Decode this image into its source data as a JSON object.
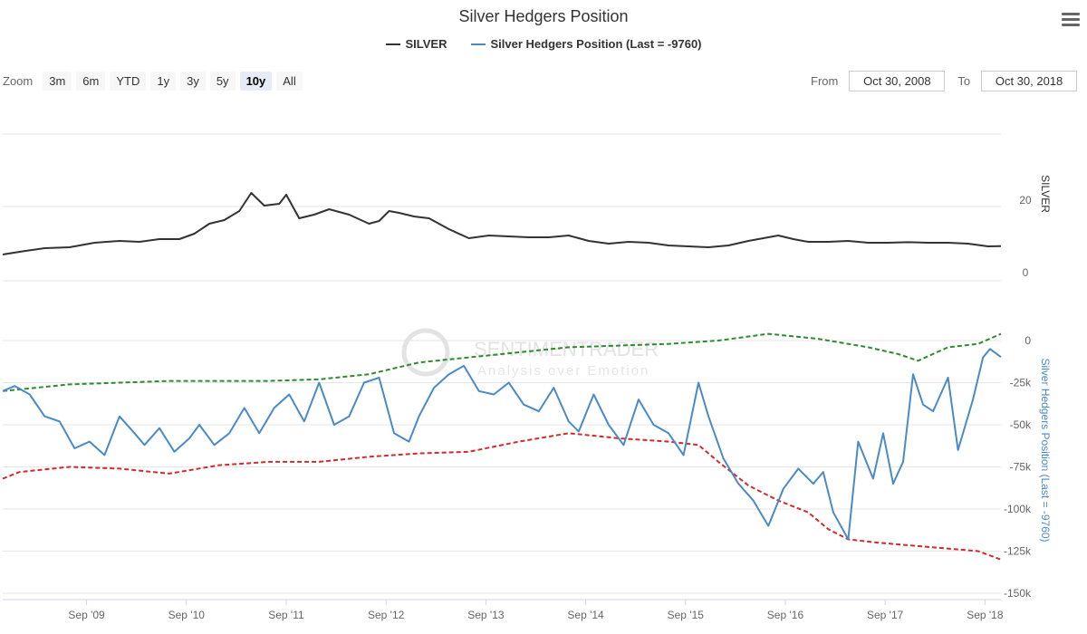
{
  "title": "Silver Hedgers Position",
  "menu_icon": "hamburger-menu-icon",
  "legend": [
    {
      "label": "SILVER",
      "color": "#333333"
    },
    {
      "label": "Silver Hedgers Position (Last = -9760)",
      "color": "#4a8ac9"
    }
  ],
  "zoom": {
    "label": "Zoom",
    "buttons": [
      "3m",
      "6m",
      "YTD",
      "1y",
      "3y",
      "5y",
      "10y",
      "All"
    ],
    "active": "10y"
  },
  "range": {
    "from_label": "From",
    "from_value": "Oct 30, 2008",
    "to_label": "To",
    "to_value": "Oct 30, 2018"
  },
  "watermark": {
    "line1": "SENTIMENTRADER",
    "line2": "Analysis over Emotion"
  },
  "colors": {
    "silver": "#333333",
    "hedgers": "#4a8ac9",
    "upper_band": "#2e8b2e",
    "lower_band": "#d42a2a",
    "grid": "#e6e6e6"
  },
  "chart_data": [
    {
      "type": "line",
      "ylabel": "SILVER",
      "y_ticks": [
        0,
        20
      ],
      "ylim": [
        -7,
        36
      ],
      "series": [
        {
          "name": "SILVER",
          "x": [
            2008.83,
            2009.0,
            2009.25,
            2009.5,
            2009.75,
            2010.0,
            2010.2,
            2010.4,
            2010.6,
            2010.75,
            2010.9,
            2011.05,
            2011.2,
            2011.32,
            2011.45,
            2011.6,
            2011.67,
            2011.8,
            2011.95,
            2012.1,
            2012.3,
            2012.5,
            2012.6,
            2012.7,
            2012.8,
            2012.95,
            2013.1,
            2013.3,
            2013.5,
            2013.7,
            2013.9,
            2014.1,
            2014.3,
            2014.5,
            2014.7,
            2014.9,
            2015.1,
            2015.3,
            2015.5,
            2015.7,
            2015.9,
            2016.1,
            2016.3,
            2016.5,
            2016.6,
            2016.75,
            2016.9,
            2017.1,
            2017.3,
            2017.5,
            2017.7,
            2017.9,
            2018.1,
            2018.3,
            2018.5,
            2018.7,
            2018.83
          ],
          "values": [
            10.0,
            11.5,
            13.5,
            14.0,
            16.5,
            17.5,
            17.0,
            18.5,
            18.5,
            21.5,
            27.0,
            29.0,
            34.0,
            44.0,
            37.0,
            38.0,
            43.0,
            30.0,
            32.0,
            35.0,
            32.0,
            27.0,
            28.5,
            34.0,
            33.0,
            31.0,
            30.0,
            24.0,
            19.0,
            20.5,
            20.0,
            19.5,
            19.5,
            20.5,
            17.5,
            16.0,
            17.0,
            16.5,
            15.0,
            14.5,
            14.0,
            15.0,
            17.5,
            19.5,
            20.5,
            18.5,
            17.0,
            17.0,
            17.5,
            16.5,
            16.5,
            16.8,
            16.5,
            16.5,
            16.0,
            14.5,
            14.6
          ]
        }
      ]
    },
    {
      "type": "line",
      "ylabel": "Silver Hedgers Position (Last = -9760)",
      "y_ticks": [
        0,
        -25000,
        -50000,
        -75000,
        -100000,
        -125000,
        -150000
      ],
      "y_tick_labels": [
        "0",
        "-25k",
        "-50k",
        "-75k",
        "-100k",
        "-125k",
        "-150k"
      ],
      "ylim": [
        -152000,
        20000
      ],
      "x_ticks": [
        2009.67,
        2010.67,
        2011.67,
        2012.67,
        2013.67,
        2014.67,
        2015.67,
        2016.67,
        2017.67,
        2018.67
      ],
      "x_tick_labels": [
        "Sep '09",
        "Sep '10",
        "Sep '11",
        "Sep '12",
        "Sep '13",
        "Sep '14",
        "Sep '15",
        "Sep '16",
        "Sep '17",
        "Sep '18"
      ],
      "series": [
        {
          "name": "Silver Hedgers Position (Last = -9760)",
          "x": [
            2008.83,
            2008.95,
            2009.1,
            2009.25,
            2009.4,
            2009.55,
            2009.7,
            2009.85,
            2010.0,
            2010.15,
            2010.25,
            2010.4,
            2010.55,
            2010.7,
            2010.8,
            2010.95,
            2011.1,
            2011.25,
            2011.4,
            2011.55,
            2011.7,
            2011.85,
            2012.0,
            2012.15,
            2012.3,
            2012.45,
            2012.6,
            2012.75,
            2012.9,
            2013.0,
            2013.15,
            2013.3,
            2013.45,
            2013.6,
            2013.75,
            2013.9,
            2014.05,
            2014.2,
            2014.35,
            2014.5,
            2014.6,
            2014.75,
            2014.9,
            2015.05,
            2015.2,
            2015.35,
            2015.5,
            2015.65,
            2015.8,
            2015.9,
            2016.05,
            2016.2,
            2016.35,
            2016.5,
            2016.65,
            2016.8,
            2016.95,
            2017.05,
            2017.15,
            2017.3,
            2017.4,
            2017.55,
            2017.65,
            2017.75,
            2017.85,
            2017.95,
            2018.05,
            2018.15,
            2018.3,
            2018.4,
            2018.55,
            2018.65,
            2018.72,
            2018.83
          ],
          "values": [
            -30000,
            -27000,
            -32000,
            -45000,
            -48000,
            -64000,
            -60000,
            -68000,
            -45000,
            -55000,
            -62000,
            -52000,
            -66000,
            -58000,
            -50000,
            -62000,
            -55000,
            -40000,
            -55000,
            -40000,
            -32000,
            -48000,
            -25000,
            -50000,
            -45000,
            -25000,
            -22000,
            -55000,
            -60000,
            -45000,
            -28000,
            -20000,
            -15000,
            -30000,
            -32000,
            -25000,
            -38000,
            -42000,
            -28000,
            -48000,
            -54000,
            -32000,
            -50000,
            -62000,
            -35000,
            -50000,
            -55000,
            -68000,
            -25000,
            -45000,
            -70000,
            -85000,
            -95000,
            -110000,
            -88000,
            -76000,
            -85000,
            -78000,
            -102000,
            -118000,
            -60000,
            -82000,
            -55000,
            -85000,
            -72000,
            -20000,
            -38000,
            -42000,
            -22000,
            -65000,
            -35000,
            -10000,
            -5000,
            -9760
          ]
        },
        {
          "name": "",
          "x": [
            2008.83,
            2009.5,
            2010.0,
            2010.5,
            2011.0,
            2011.5,
            2012.0,
            2012.5,
            2013.0,
            2013.5,
            2014.0,
            2014.5,
            2015.0,
            2015.5,
            2016.0,
            2016.5,
            2017.0,
            2017.5,
            2017.8,
            2018.0,
            2018.3,
            2018.6,
            2018.83
          ],
          "values": [
            -30000,
            -26000,
            -25000,
            -24000,
            -24000,
            -24000,
            -23000,
            -20000,
            -13000,
            -10000,
            -7000,
            -4000,
            -3000,
            -2000,
            0,
            4000,
            1000,
            -4000,
            -8000,
            -12000,
            -4000,
            -2000,
            4000
          ]
        },
        {
          "name": "",
          "x": [
            2008.83,
            2009.0,
            2009.5,
            2010.0,
            2010.5,
            2011.0,
            2011.5,
            2012.0,
            2012.5,
            2013.0,
            2013.5,
            2014.0,
            2014.5,
            2015.0,
            2015.5,
            2015.8,
            2016.0,
            2016.3,
            2016.6,
            2016.9,
            2017.1,
            2017.3,
            2017.6,
            2018.0,
            2018.4,
            2018.6,
            2018.83
          ],
          "values": [
            -82000,
            -78000,
            -75000,
            -76000,
            -79000,
            -74000,
            -72000,
            -72000,
            -69000,
            -67000,
            -66000,
            -60000,
            -55000,
            -58000,
            -60000,
            -62000,
            -72000,
            -86000,
            -95000,
            -102000,
            -112000,
            -118000,
            -120000,
            -122000,
            -124000,
            -125000,
            -130000
          ]
        }
      ]
    }
  ]
}
